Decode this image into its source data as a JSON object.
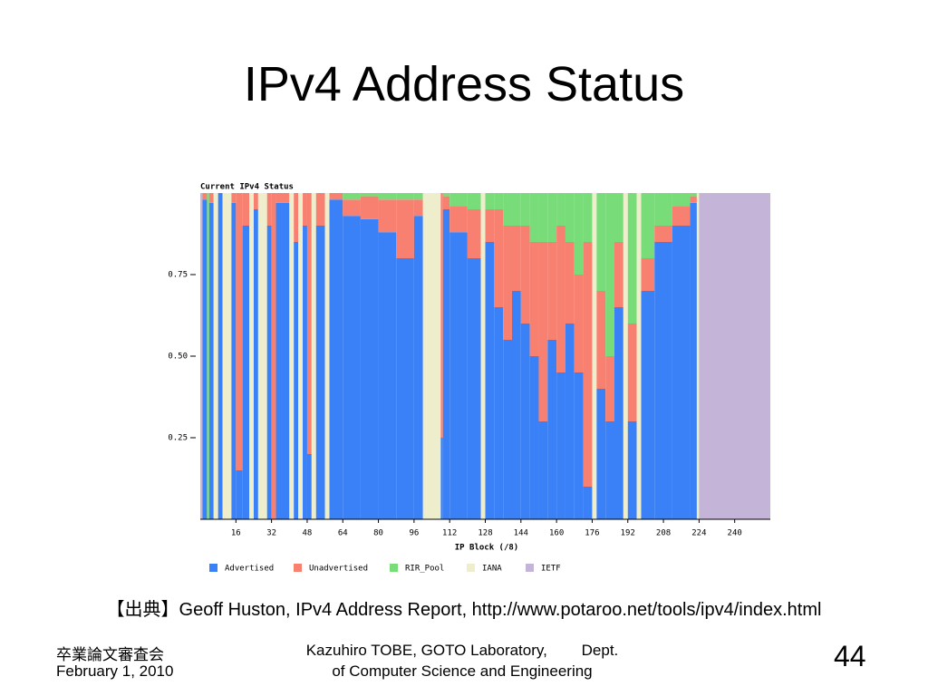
{
  "slide": {
    "title": "IPv4 Address Status",
    "source": "【出典】Geoff Huston, IPv4 Address Report, http://www.potaroo.net/tools/ipv4/index.html",
    "footer_left_1": "卒業論文審査会",
    "footer_left_2": "February 1, 2010",
    "footer_center_1": "Kazuhiro TOBE, GOTO Laboratory,        Dept.",
    "footer_center_2": "of Computer Science and Engineering",
    "page_number": 44
  },
  "chart_data": {
    "type": "histogram",
    "stacked": true,
    "title": "Current IPv4 Status",
    "xlabel": "IP Block (/8)",
    "bins": [
      0,
      1,
      3,
      4,
      6,
      8,
      10,
      14,
      16,
      19,
      22,
      24,
      26,
      30,
      32,
      34,
      40,
      42,
      44,
      46,
      48,
      50,
      52,
      56,
      58,
      64,
      72,
      80,
      88,
      96,
      100,
      108,
      109,
      112,
      120,
      126,
      128,
      132,
      136,
      140,
      144,
      148,
      152,
      156,
      160,
      164,
      168,
      172,
      176,
      178,
      182,
      186,
      190,
      192,
      196,
      198,
      204,
      212,
      220,
      223,
      224,
      256
    ],
    "series": [
      {
        "name": "Advertised",
        "color": "#3a80f7",
        "values": [
          0,
          0.98,
          0,
          0.97,
          0,
          1,
          0,
          0.97,
          0.15,
          0.9,
          0,
          0.95,
          0,
          0.9,
          0,
          0.97,
          0,
          0.85,
          0,
          0.9,
          0.2,
          0,
          0.9,
          0,
          0.98,
          0.93,
          0.92,
          0.88,
          0.8,
          0.93,
          0,
          0.25,
          0.95,
          0.88,
          0.8,
          0,
          0.85,
          0.65,
          0.55,
          0.7,
          0.6,
          0.5,
          0.3,
          0.55,
          0.45,
          0.6,
          0.45,
          0.1,
          0,
          0.4,
          0.3,
          0.65,
          0,
          0.3,
          0,
          0.7,
          0.85,
          0.9,
          0.97,
          0,
          0
        ]
      },
      {
        "name": "Unadvertised",
        "color": "#f88070",
        "values": [
          0,
          0.02,
          0,
          0.03,
          0,
          0,
          0,
          0.03,
          0.85,
          0.1,
          0,
          0.05,
          0,
          0.1,
          1,
          0.03,
          0,
          0.15,
          0,
          0.1,
          0.8,
          0,
          0.1,
          0,
          0.02,
          0.05,
          0.07,
          0.1,
          0.18,
          0.05,
          0,
          0.75,
          0.04,
          0.08,
          0.15,
          0,
          0.1,
          0.3,
          0.35,
          0.2,
          0.3,
          0.35,
          0.55,
          0.3,
          0.45,
          0.25,
          0.3,
          0.75,
          0,
          0.3,
          0.2,
          0.2,
          0,
          0.3,
          0,
          0.1,
          0.05,
          0.06,
          0.02,
          0,
          0
        ]
      },
      {
        "name": "RIR_Pool",
        "color": "#78dc78",
        "values": [
          0,
          0,
          1,
          0,
          0,
          0,
          0,
          0,
          0,
          0,
          0,
          0,
          0,
          0,
          0,
          0,
          0,
          0,
          0,
          0,
          0,
          0,
          0,
          0,
          0,
          0.02,
          0.01,
          0.02,
          0.02,
          0.02,
          0,
          0,
          0.01,
          0.04,
          0.05,
          0,
          0.05,
          0.05,
          0.1,
          0.1,
          0.1,
          0.15,
          0.15,
          0.15,
          0.1,
          0.15,
          0.25,
          0.15,
          0,
          0.3,
          0.5,
          0.15,
          0,
          0.4,
          0,
          0.2,
          0.1,
          0.04,
          0.01,
          0,
          0
        ]
      },
      {
        "name": "IANA",
        "color": "#eeeecc",
        "values": [
          0,
          0,
          0,
          0,
          1,
          0,
          1,
          0,
          0,
          0,
          1,
          0,
          1,
          0,
          0,
          0,
          1,
          0,
          1,
          0,
          0,
          1,
          0,
          1,
          0,
          0,
          0,
          0,
          0,
          0,
          1,
          0,
          0,
          0,
          0,
          1,
          0,
          0,
          0,
          0,
          0,
          0,
          0,
          0,
          0,
          0,
          0,
          0,
          1,
          0,
          0,
          0,
          1,
          0,
          1,
          0,
          0,
          0,
          0,
          1,
          0
        ]
      },
      {
        "name": "IETF",
        "color": "#c4b4d8",
        "values": [
          1,
          0,
          0,
          0,
          0,
          0,
          0,
          0,
          0,
          0,
          0,
          0,
          0,
          0,
          0,
          0,
          0,
          0,
          0,
          0,
          0,
          0,
          0,
          0,
          0,
          0,
          0,
          0,
          0,
          0,
          0,
          0,
          0,
          0,
          0,
          0,
          0,
          0,
          0,
          0,
          0,
          0,
          0,
          0,
          0,
          0,
          0,
          0,
          0,
          0,
          0,
          0,
          0,
          0,
          0,
          0,
          0,
          0,
          0,
          0,
          1
        ]
      }
    ],
    "xlim": [
      0,
      256
    ],
    "xticks": [
      16,
      32,
      48,
      64,
      80,
      96,
      112,
      128,
      144,
      160,
      176,
      192,
      208,
      224,
      240
    ],
    "ylim": [
      0,
      1
    ],
    "yticks": [
      0.25,
      {
        "value": 0.5,
        "label": "0.50"
      },
      0.75
    ]
  }
}
